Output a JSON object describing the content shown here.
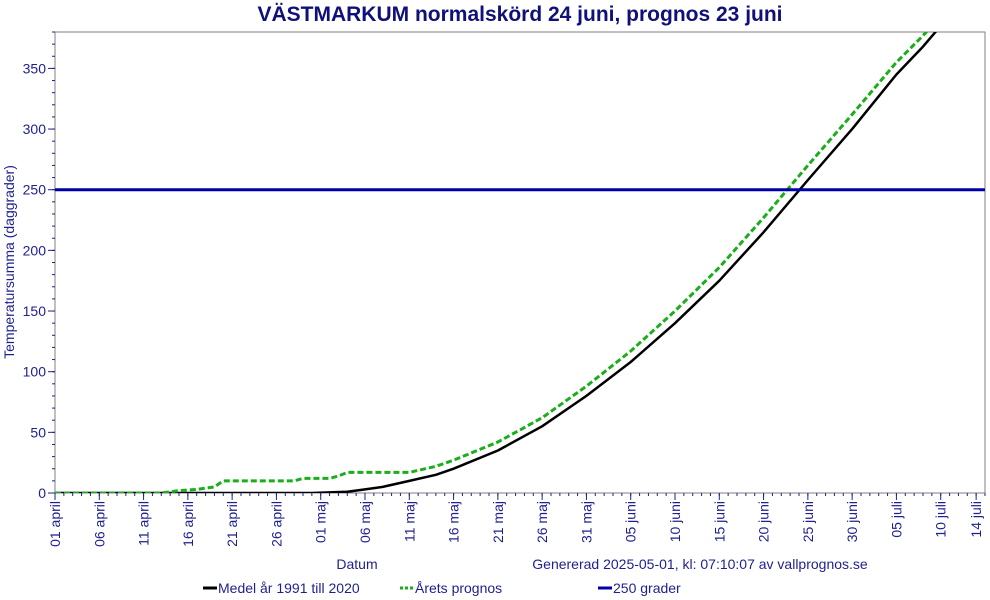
{
  "chart_data": {
    "type": "line",
    "title": "VÄSTMARKUM normalskörd 24 juni, prognos 23 juni",
    "xlabel": "Datum",
    "ylabel": "Temperatursumma (daggrader)",
    "generated_note": "Genererad 2025-05-01, kl: 07:10:07 av vallprognos.se",
    "ylim": [
      0,
      380
    ],
    "xlim": [
      "2025-04-01",
      "2025-07-15"
    ],
    "yticks": [
      0,
      50,
      100,
      150,
      200,
      250,
      300,
      350
    ],
    "xticks": [
      {
        "date": "2025-04-01",
        "label": "01 april"
      },
      {
        "date": "2025-04-06",
        "label": "06 april"
      },
      {
        "date": "2025-04-11",
        "label": "11 april"
      },
      {
        "date": "2025-04-16",
        "label": "16 april"
      },
      {
        "date": "2025-04-21",
        "label": "21 april"
      },
      {
        "date": "2025-04-26",
        "label": "26 april"
      },
      {
        "date": "2025-05-01",
        "label": "01 maj"
      },
      {
        "date": "2025-05-06",
        "label": "06 maj"
      },
      {
        "date": "2025-05-11",
        "label": "11 maj"
      },
      {
        "date": "2025-05-16",
        "label": "16 maj"
      },
      {
        "date": "2025-05-21",
        "label": "21 maj"
      },
      {
        "date": "2025-05-26",
        "label": "26 maj"
      },
      {
        "date": "2025-05-31",
        "label": "31 maj"
      },
      {
        "date": "2025-06-05",
        "label": "05 juni"
      },
      {
        "date": "2025-06-10",
        "label": "10 juni"
      },
      {
        "date": "2025-06-15",
        "label": "15 juni"
      },
      {
        "date": "2025-06-20",
        "label": "20 juni"
      },
      {
        "date": "2025-06-25",
        "label": "25 juni"
      },
      {
        "date": "2025-06-30",
        "label": "30 juni"
      },
      {
        "date": "2025-07-05",
        "label": "05 juli"
      },
      {
        "date": "2025-07-10",
        "label": "10 juli"
      },
      {
        "date": "2025-07-14",
        "label": "14 juli"
      }
    ],
    "grid": false,
    "legend_position": "bottom",
    "series": [
      {
        "name": "Medel år 1991 till 2020",
        "color": "#000000",
        "style": "solid",
        "points": [
          [
            "2025-04-01",
            0
          ],
          [
            "2025-04-30",
            0
          ],
          [
            "2025-05-04",
            1
          ],
          [
            "2025-05-06",
            3
          ],
          [
            "2025-05-08",
            5
          ],
          [
            "2025-05-11",
            10
          ],
          [
            "2025-05-14",
            15
          ],
          [
            "2025-05-16",
            20
          ],
          [
            "2025-05-21",
            35
          ],
          [
            "2025-05-26",
            55
          ],
          [
            "2025-05-31",
            80
          ],
          [
            "2025-06-05",
            108
          ],
          [
            "2025-06-10",
            140
          ],
          [
            "2025-06-15",
            175
          ],
          [
            "2025-06-20",
            215
          ],
          [
            "2025-06-25",
            258
          ],
          [
            "2025-06-30",
            300
          ],
          [
            "2025-07-05",
            345
          ],
          [
            "2025-07-08",
            368
          ],
          [
            "2025-07-10",
            385
          ]
        ]
      },
      {
        "name": "Årets prognos",
        "color": "#1aae1a",
        "style": "dashed",
        "points": [
          [
            "2025-04-01",
            0
          ],
          [
            "2025-04-13",
            0
          ],
          [
            "2025-04-15",
            2
          ],
          [
            "2025-04-17",
            3
          ],
          [
            "2025-04-19",
            5
          ],
          [
            "2025-04-20",
            10
          ],
          [
            "2025-04-28",
            10
          ],
          [
            "2025-04-29",
            12
          ],
          [
            "2025-05-02",
            12
          ],
          [
            "2025-05-03",
            14
          ],
          [
            "2025-05-04",
            17
          ],
          [
            "2025-05-11",
            17
          ],
          [
            "2025-05-14",
            22
          ],
          [
            "2025-05-16",
            27
          ],
          [
            "2025-05-21",
            42
          ],
          [
            "2025-05-26",
            62
          ],
          [
            "2025-05-31",
            88
          ],
          [
            "2025-06-05",
            117
          ],
          [
            "2025-06-10",
            150
          ],
          [
            "2025-06-15",
            186
          ],
          [
            "2025-06-20",
            227
          ],
          [
            "2025-06-25",
            270
          ],
          [
            "2025-06-30",
            312
          ],
          [
            "2025-07-05",
            355
          ],
          [
            "2025-07-08",
            377
          ],
          [
            "2025-07-10",
            393
          ]
        ]
      },
      {
        "name": "250 grader",
        "color": "#0000a8",
        "style": "solid",
        "points": [
          [
            "2025-04-01",
            250
          ],
          [
            "2025-07-15",
            250
          ]
        ]
      }
    ]
  }
}
